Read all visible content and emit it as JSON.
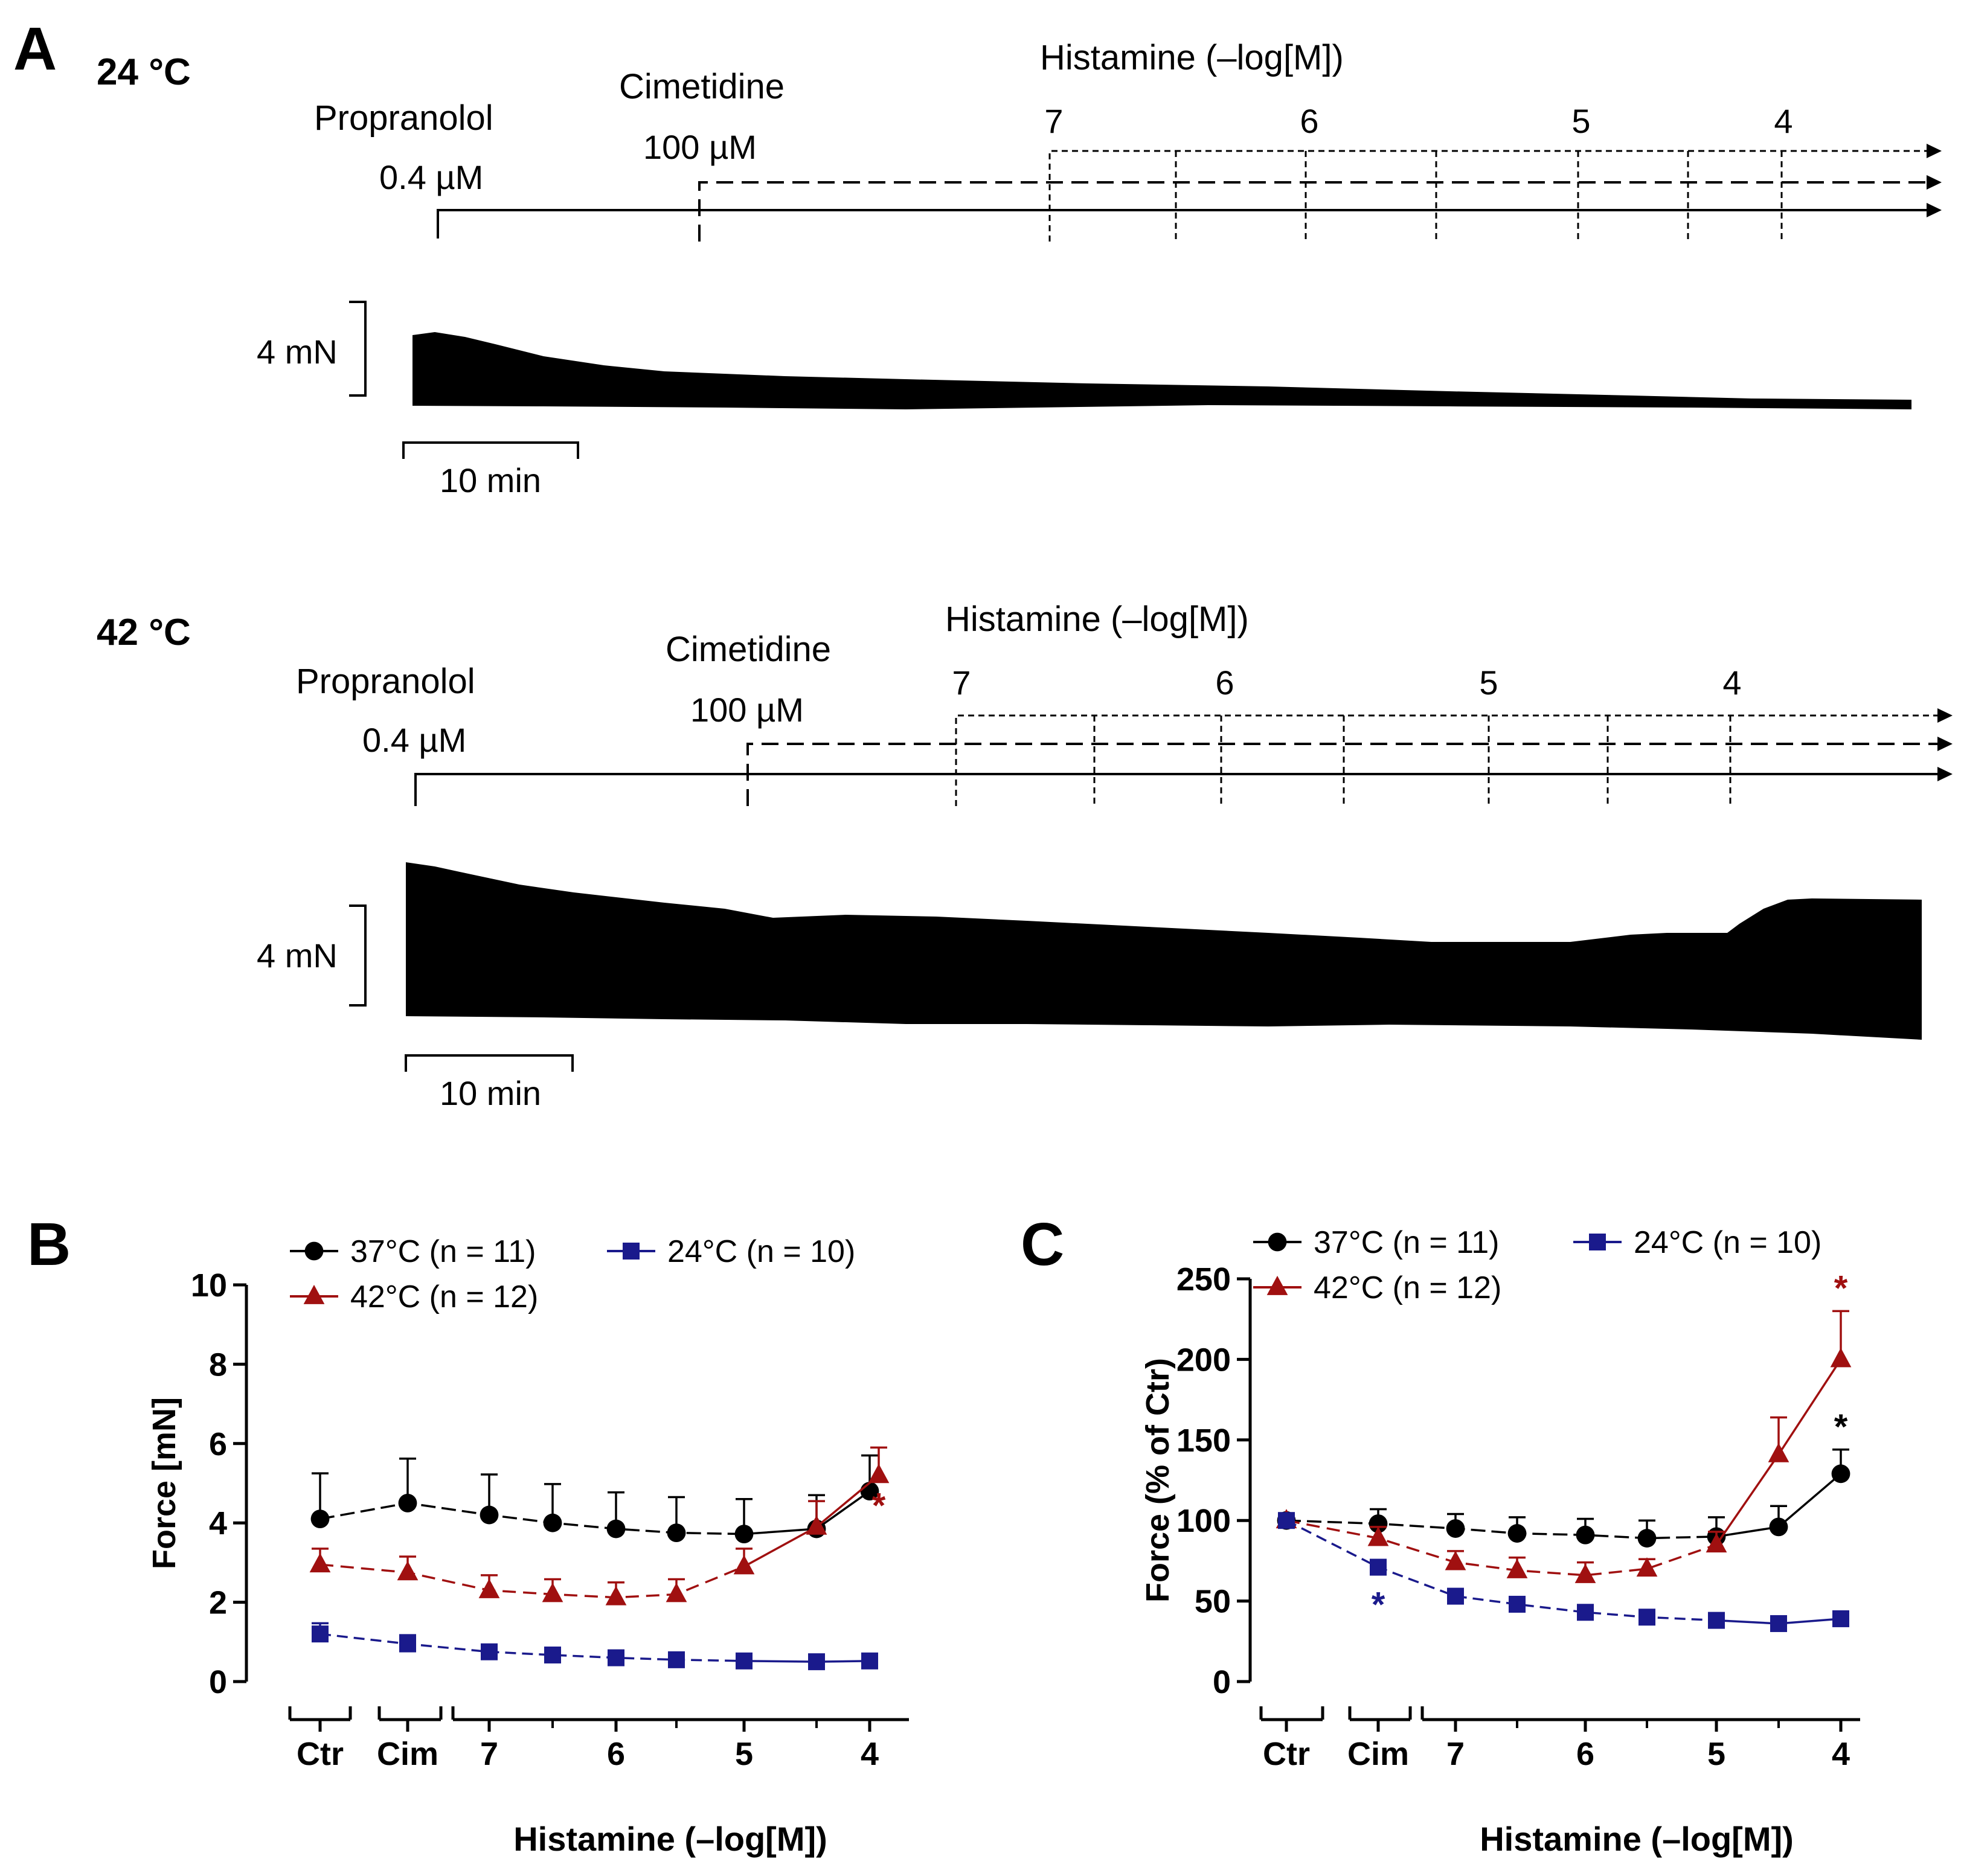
{
  "panel_labels": {
    "a": "A",
    "b": "B",
    "c": "C"
  },
  "panel_a": {
    "traces": [
      {
        "temp_label": "24 °C",
        "propranolol_label": "Propranolol",
        "propranolol_conc": "0.4 µM",
        "cimetidine_label": "Cimetidine",
        "cimetidine_conc": "100 µM",
        "histamine_header": "Histamine (–log[M])",
        "histamine_steps": [
          "7",
          "6",
          "5",
          "4"
        ],
        "force_scale": "4 mN",
        "time_scale": "10 min"
      },
      {
        "temp_label": "42 °C",
        "propranolol_label": "Propranolol",
        "propranolol_conc": "0.4 µM",
        "cimetidine_label": "Cimetidine",
        "cimetidine_conc": "100 µM",
        "histamine_header": "Histamine (–log[M])",
        "histamine_steps": [
          "7",
          "6",
          "5",
          "4"
        ],
        "force_scale": "4 mN",
        "time_scale": "10 min"
      }
    ]
  },
  "chart_data": [
    {
      "type": "line",
      "panel": "B",
      "ylabel": "Force [mN]",
      "xlabel": "Histamine (–log[M])",
      "ylim": [
        0,
        10
      ],
      "yticks": [
        0,
        2,
        4,
        6,
        8,
        10
      ],
      "categories": [
        "Ctr",
        "Cim",
        "7",
        "6.5",
        "6",
        "5.5",
        "5",
        "4.5",
        "4"
      ],
      "x_tick_labels": [
        "Ctr",
        "Cim",
        "7",
        "6",
        "5",
        "4"
      ],
      "series": [
        {
          "name": "37°C (n = 11)",
          "color": "#000000",
          "marker": "circle",
          "values": [
            4.1,
            4.5,
            4.2,
            4.0,
            3.85,
            3.75,
            3.72,
            3.85,
            4.8
          ],
          "errors": [
            1.15,
            1.12,
            1.02,
            0.98,
            0.92,
            0.9,
            0.88,
            0.85,
            0.9
          ]
        },
        {
          "name": "42°C (n = 12)",
          "color": "#a01010",
          "marker": "triangle",
          "values": [
            2.95,
            2.75,
            2.3,
            2.2,
            2.12,
            2.2,
            2.9,
            3.9,
            5.2
          ],
          "errors": [
            0.4,
            0.4,
            0.38,
            0.38,
            0.38,
            0.38,
            0.45,
            0.65,
            0.7
          ]
        },
        {
          "name": "24°C (n = 10)",
          "color": "#1a1a8c",
          "marker": "square",
          "values": [
            1.2,
            0.95,
            0.75,
            0.67,
            0.6,
            0.55,
            0.52,
            0.5,
            0.52
          ],
          "errors": [
            0.27,
            0.22,
            0.17,
            0.15,
            0.12,
            0.1,
            0.08,
            0.07,
            0.06
          ]
        }
      ],
      "annotations": [
        {
          "text": "*",
          "series": "42°C (n = 12)",
          "category": "4"
        }
      ]
    },
    {
      "type": "line",
      "panel": "C",
      "ylabel": "Force (% of Ctr)",
      "xlabel": "Histamine (–log[M])",
      "ylim": [
        0,
        250
      ],
      "yticks": [
        0,
        50,
        100,
        150,
        200,
        250
      ],
      "categories": [
        "Ctr",
        "Cim",
        "7",
        "6.5",
        "6",
        "5.5",
        "5",
        "4.5",
        "4"
      ],
      "x_tick_labels": [
        "Ctr",
        "Cim",
        "7",
        "6",
        "5",
        "4"
      ],
      "series": [
        {
          "name": "37°C (n = 11)",
          "color": "#000000",
          "marker": "circle",
          "values": [
            100,
            98,
            95,
            92,
            91,
            89,
            90,
            96,
            129
          ],
          "errors": [
            0,
            9,
            9,
            10,
            10,
            11,
            12,
            13,
            15
          ]
        },
        {
          "name": "42°C (n = 12)",
          "color": "#a01010",
          "marker": "triangle",
          "values": [
            100,
            89,
            74,
            69,
            66,
            70,
            85,
            141,
            200
          ],
          "errors": [
            0,
            7,
            7,
            8,
            8,
            6,
            8,
            23,
            30
          ]
        },
        {
          "name": "24°C (n = 10)",
          "color": "#1a1a8c",
          "marker": "square",
          "values": [
            100,
            71,
            53,
            48,
            43,
            40,
            38,
            36,
            39
          ],
          "errors": [
            0,
            4,
            3,
            3,
            3,
            3,
            2,
            2,
            2
          ]
        }
      ],
      "annotations": [
        {
          "text": "*",
          "series": "24°C (n = 10)",
          "category": "Cim"
        },
        {
          "text": "*",
          "series": "37°C (n = 11)",
          "category": "4"
        },
        {
          "text": "*",
          "series": "42°C (n = 12)",
          "category": "4"
        }
      ]
    }
  ]
}
